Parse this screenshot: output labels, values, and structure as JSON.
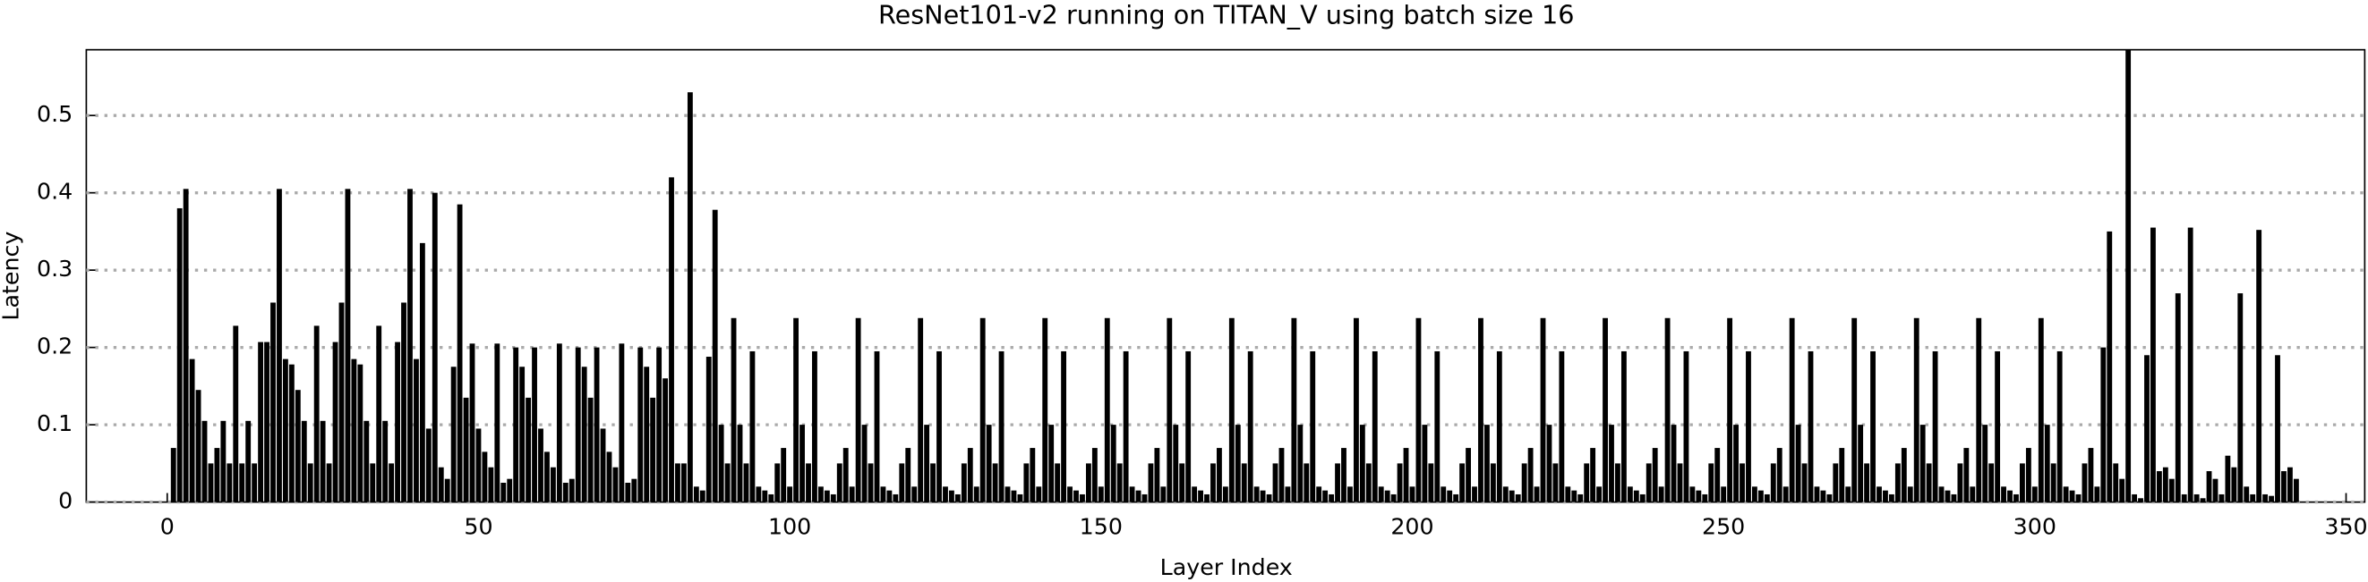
{
  "chart_data": {
    "type": "bar",
    "title": "ResNet101-v2 running on TITAN_V using batch size 16",
    "x_label": "Layer Index",
    "y_label": "Latency",
    "color": "#000000",
    "grid": true,
    "xlim": [
      -13,
      353
    ],
    "ylim": [
      0,
      0.585
    ],
    "xticks": [
      0,
      50,
      100,
      150,
      200,
      250,
      300,
      350
    ],
    "yticks": [
      0.0,
      0.1,
      0.2,
      0.3,
      0.4,
      0.5
    ],
    "x": [
      1,
      2,
      3,
      4,
      5,
      6,
      7,
      8,
      9,
      10,
      11,
      12,
      13,
      14,
      15,
      16,
      17,
      18,
      19,
      20,
      21,
      22,
      23,
      24,
      25,
      26,
      27,
      28,
      29,
      30,
      31,
      32,
      33,
      34,
      35,
      36,
      37,
      38,
      39,
      40,
      41,
      42,
      43,
      44,
      45,
      46,
      47,
      48,
      49,
      50,
      51,
      52,
      53,
      54,
      55,
      56,
      57,
      58,
      59,
      60,
      61,
      62,
      63,
      64,
      65,
      66,
      67,
      68,
      69,
      70,
      71,
      72,
      73,
      74,
      75,
      76,
      77,
      78,
      79,
      80,
      81,
      82,
      83,
      84,
      85,
      86,
      87,
      88,
      89,
      90,
      91,
      92,
      93,
      94,
      95,
      96,
      97,
      98,
      99,
      100,
      101,
      102,
      103,
      104,
      105,
      106,
      107,
      108,
      109,
      110,
      111,
      112,
      113,
      114,
      115,
      116,
      117,
      118,
      119,
      120,
      121,
      122,
      123,
      124,
      125,
      126,
      127,
      128,
      129,
      130,
      131,
      132,
      133,
      134,
      135,
      136,
      137,
      138,
      139,
      140,
      141,
      142,
      143,
      144,
      145,
      146,
      147,
      148,
      149,
      150,
      151,
      152,
      153,
      154,
      155,
      156,
      157,
      158,
      159,
      160,
      161,
      162,
      163,
      164,
      165,
      166,
      167,
      168,
      169,
      170,
      171,
      172,
      173,
      174,
      175,
      176,
      177,
      178,
      179,
      180,
      181,
      182,
      183,
      184,
      185,
      186,
      187,
      188,
      189,
      190,
      191,
      192,
      193,
      194,
      195,
      196,
      197,
      198,
      199,
      200,
      201,
      202,
      203,
      204,
      205,
      206,
      207,
      208,
      209,
      210,
      211,
      212,
      213,
      214,
      215,
      216,
      217,
      218,
      219,
      220,
      221,
      222,
      223,
      224,
      225,
      226,
      227,
      228,
      229,
      230,
      231,
      232,
      233,
      234,
      235,
      236,
      237,
      238,
      239,
      240,
      241,
      242,
      243,
      244,
      245,
      246,
      247,
      248,
      249,
      250,
      251,
      252,
      253,
      254,
      255,
      256,
      257,
      258,
      259,
      260,
      261,
      262,
      263,
      264,
      265,
      266,
      267,
      268,
      269,
      270,
      271,
      272,
      273,
      274,
      275,
      276,
      277,
      278,
      279,
      280,
      281,
      282,
      283,
      284,
      285,
      286,
      287,
      288,
      289,
      290,
      291,
      292,
      293,
      294,
      295,
      296,
      297,
      298,
      299,
      300,
      301,
      302,
      303,
      304,
      305,
      306,
      307,
      308,
      309,
      310,
      311,
      312,
      313,
      314,
      315,
      316,
      317,
      318,
      319,
      320,
      321,
      322,
      323,
      324,
      325,
      326,
      327,
      328,
      329,
      330,
      331,
      332,
      333,
      334,
      335,
      336,
      337,
      338,
      339,
      340,
      341,
      342
    ],
    "values": [
      0.07,
      0.38,
      0.405,
      0.185,
      0.145,
      0.105,
      0.05,
      0.07,
      0.105,
      0.05,
      0.228,
      0.05,
      0.105,
      0.05,
      0.207,
      0.207,
      0.258,
      0.405,
      0.185,
      0.178,
      0.145,
      0.105,
      0.05,
      0.228,
      0.105,
      0.05,
      0.207,
      0.258,
      0.405,
      0.185,
      0.178,
      0.105,
      0.05,
      0.228,
      0.105,
      0.05,
      0.207,
      0.258,
      0.405,
      0.185,
      0.335,
      0.095,
      0.4,
      0.045,
      0.03,
      0.175,
      0.385,
      0.135,
      0.205,
      0.095,
      0.065,
      0.045,
      0.205,
      0.025,
      0.03,
      0.2,
      0.175,
      0.135,
      0.2,
      0.095,
      0.065,
      0.045,
      0.205,
      0.025,
      0.03,
      0.2,
      0.175,
      0.135,
      0.2,
      0.095,
      0.065,
      0.045,
      0.205,
      0.025,
      0.03,
      0.2,
      0.175,
      0.135,
      0.2,
      0.16,
      0.42,
      0.05,
      0.05,
      0.53,
      0.02,
      0.015,
      0.188,
      0.378,
      0.1,
      0.05,
      0.238,
      0.1,
      0.05,
      0.195,
      0.02,
      0.015,
      0.01,
      0.05,
      0.07,
      0.02,
      0.238,
      0.1,
      0.05,
      0.195,
      0.02,
      0.015,
      0.01,
      0.05,
      0.07,
      0.02,
      0.238,
      0.1,
      0.05,
      0.195,
      0.02,
      0.015,
      0.01,
      0.05,
      0.07,
      0.02,
      0.238,
      0.1,
      0.05,
      0.195,
      0.02,
      0.015,
      0.01,
      0.05,
      0.07,
      0.02,
      0.238,
      0.1,
      0.05,
      0.195,
      0.02,
      0.015,
      0.01,
      0.05,
      0.07,
      0.02,
      0.238,
      0.1,
      0.05,
      0.195,
      0.02,
      0.015,
      0.01,
      0.05,
      0.07,
      0.02,
      0.238,
      0.1,
      0.05,
      0.195,
      0.02,
      0.015,
      0.01,
      0.05,
      0.07,
      0.02,
      0.238,
      0.1,
      0.05,
      0.195,
      0.02,
      0.015,
      0.01,
      0.05,
      0.07,
      0.02,
      0.238,
      0.1,
      0.05,
      0.195,
      0.02,
      0.015,
      0.01,
      0.05,
      0.07,
      0.02,
      0.238,
      0.1,
      0.05,
      0.195,
      0.02,
      0.015,
      0.01,
      0.05,
      0.07,
      0.02,
      0.238,
      0.1,
      0.05,
      0.195,
      0.02,
      0.015,
      0.01,
      0.05,
      0.07,
      0.02,
      0.238,
      0.1,
      0.05,
      0.195,
      0.02,
      0.015,
      0.01,
      0.05,
      0.07,
      0.02,
      0.238,
      0.1,
      0.05,
      0.195,
      0.02,
      0.015,
      0.01,
      0.05,
      0.07,
      0.02,
      0.238,
      0.1,
      0.05,
      0.195,
      0.02,
      0.015,
      0.01,
      0.05,
      0.07,
      0.02,
      0.238,
      0.1,
      0.05,
      0.195,
      0.02,
      0.015,
      0.01,
      0.05,
      0.07,
      0.02,
      0.238,
      0.1,
      0.05,
      0.195,
      0.02,
      0.015,
      0.01,
      0.05,
      0.07,
      0.02,
      0.238,
      0.1,
      0.05,
      0.195,
      0.02,
      0.015,
      0.01,
      0.05,
      0.07,
      0.02,
      0.238,
      0.1,
      0.05,
      0.195,
      0.02,
      0.015,
      0.01,
      0.05,
      0.07,
      0.02,
      0.238,
      0.1,
      0.05,
      0.195,
      0.02,
      0.015,
      0.01,
      0.05,
      0.07,
      0.02,
      0.238,
      0.1,
      0.05,
      0.195,
      0.02,
      0.015,
      0.01,
      0.05,
      0.07,
      0.02,
      0.238,
      0.1,
      0.05,
      0.195,
      0.02,
      0.015,
      0.01,
      0.05,
      0.07,
      0.02,
      0.238,
      0.1,
      0.05,
      0.195,
      0.02,
      0.015,
      0.01,
      0.05,
      0.07,
      0.02,
      0.2,
      0.35,
      0.05,
      0.03,
      0.585,
      0.01,
      0.005,
      0.19,
      0.355,
      0.04,
      0.045,
      0.03,
      0.27,
      0.01,
      0.355,
      0.01,
      0.005,
      0.04,
      0.03,
      0.01,
      0.06,
      0.045,
      0.27,
      0.02,
      0.01,
      0.352,
      0.01,
      0.008,
      0.19,
      0.04,
      0.045,
      0.03
    ]
  }
}
